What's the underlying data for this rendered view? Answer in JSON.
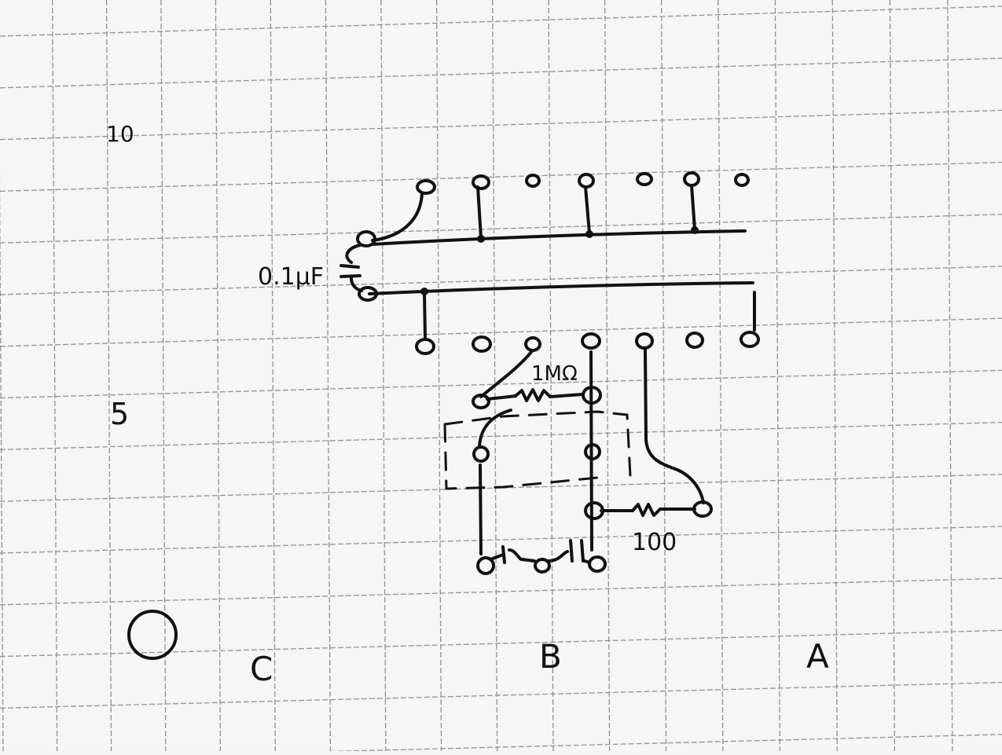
{
  "labels": {
    "row_ten": "10",
    "row_five": "5",
    "column_c": "C",
    "column_b": "B",
    "column_a": "A",
    "capacitor": "0.1µF",
    "resistor_top": "1MΩ",
    "resistor_right": "100"
  },
  "colors": {
    "paper": "#f6f6f6",
    "grid": "#6f6f6f",
    "ink": "#111111"
  }
}
